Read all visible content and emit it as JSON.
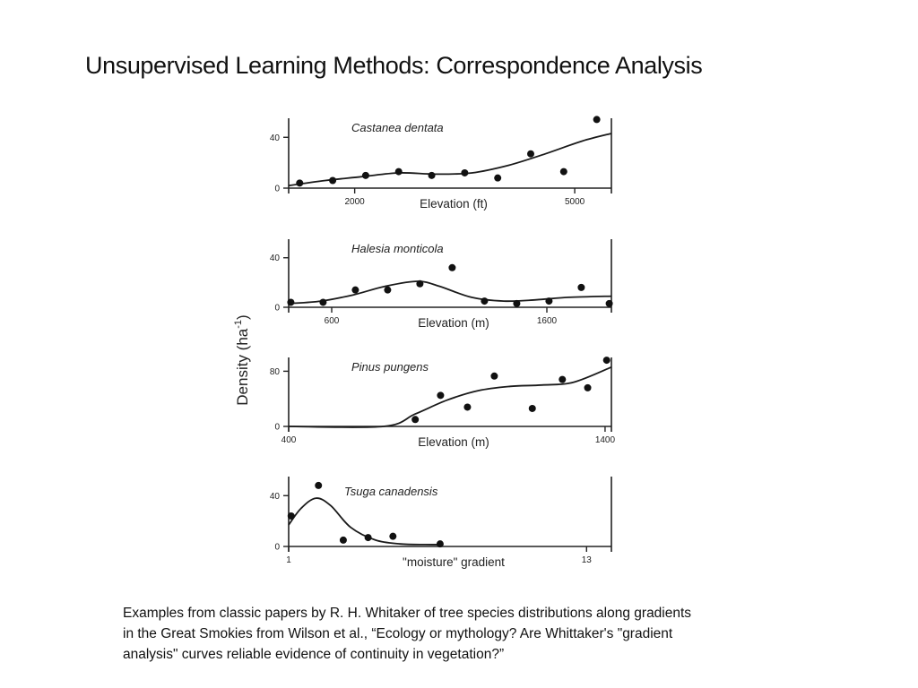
{
  "slide": {
    "title": "Unsupervised Learning Methods: Correspondence Analysis",
    "caption_lines": [
      "Examples from classic papers by R. H. Whitaker of tree species distributions along gradients",
      "in the Great  Smokies  from Wilson et al., “Ecology or mythology? Are Whittaker's \"gradient",
      "analysis\" curves reliable evidence of continuity in vegetation?”"
    ]
  },
  "figure": {
    "shared_ylabel": "Density (ha",
    "shared_ylabel_sup": "-1",
    "shared_ylabel_close": ")"
  },
  "chart_data": [
    {
      "type": "scatter",
      "title": "Castanea dentata",
      "xlabel": "Elevation (ft)",
      "ylabel": "Density (ha-1)",
      "xlim": [
        1100,
        5500
      ],
      "ylim": [
        0,
        55
      ],
      "xticks": [
        {
          "value": 2000,
          "label": "2000"
        },
        {
          "value": 5000,
          "label": "5000"
        }
      ],
      "yticks": [
        {
          "value": 0,
          "label": "0"
        },
        {
          "value": 40,
          "label": "40"
        }
      ],
      "points": [
        {
          "x": 1250,
          "y": 4
        },
        {
          "x": 1700,
          "y": 6
        },
        {
          "x": 2150,
          "y": 10
        },
        {
          "x": 2600,
          "y": 13
        },
        {
          "x": 3050,
          "y": 10
        },
        {
          "x": 3500,
          "y": 12
        },
        {
          "x": 3950,
          "y": 8
        },
        {
          "x": 4400,
          "y": 27
        },
        {
          "x": 4850,
          "y": 13
        },
        {
          "x": 5300,
          "y": 54
        }
      ],
      "curve": [
        {
          "x": 1100,
          "y": 2
        },
        {
          "x": 1600,
          "y": 6
        },
        {
          "x": 2100,
          "y": 9
        },
        {
          "x": 2600,
          "y": 12
        },
        {
          "x": 3100,
          "y": 11
        },
        {
          "x": 3600,
          "y": 12
        },
        {
          "x": 4100,
          "y": 18
        },
        {
          "x": 4600,
          "y": 27
        },
        {
          "x": 5100,
          "y": 37
        },
        {
          "x": 5500,
          "y": 43
        }
      ]
    },
    {
      "type": "scatter",
      "title": "Halesia monticola",
      "xlabel": "Elevation (m)",
      "ylabel": "Density (ha-1)",
      "xlim": [
        400,
        1900
      ],
      "ylim": [
        0,
        55
      ],
      "xticks": [
        {
          "value": 600,
          "label": "600"
        },
        {
          "value": 1600,
          "label": "1600"
        }
      ],
      "yticks": [
        {
          "value": 0,
          "label": "0"
        },
        {
          "value": 40,
          "label": "40"
        }
      ],
      "points": [
        {
          "x": 410,
          "y": 4
        },
        {
          "x": 560,
          "y": 4
        },
        {
          "x": 710,
          "y": 14
        },
        {
          "x": 860,
          "y": 14
        },
        {
          "x": 1010,
          "y": 19
        },
        {
          "x": 1160,
          "y": 32
        },
        {
          "x": 1310,
          "y": 5
        },
        {
          "x": 1460,
          "y": 3
        },
        {
          "x": 1610,
          "y": 5
        },
        {
          "x": 1760,
          "y": 16
        },
        {
          "x": 1890,
          "y": 3
        }
      ],
      "curve": [
        {
          "x": 400,
          "y": 3
        },
        {
          "x": 550,
          "y": 5
        },
        {
          "x": 700,
          "y": 10
        },
        {
          "x": 850,
          "y": 17
        },
        {
          "x": 1000,
          "y": 21
        },
        {
          "x": 1100,
          "y": 17
        },
        {
          "x": 1250,
          "y": 8
        },
        {
          "x": 1400,
          "y": 5
        },
        {
          "x": 1550,
          "y": 6
        },
        {
          "x": 1700,
          "y": 8
        },
        {
          "x": 1900,
          "y": 9
        }
      ]
    },
    {
      "type": "scatter",
      "title": "Pinus pungens",
      "xlabel": "Elevation (m)",
      "ylabel": "Density (ha-1)",
      "xlim": [
        400,
        1420
      ],
      "ylim": [
        0,
        100
      ],
      "xticks": [
        {
          "value": 400,
          "label": "400"
        },
        {
          "value": 1400,
          "label": "1400"
        }
      ],
      "yticks": [
        {
          "value": 0,
          "label": "0"
        },
        {
          "value": 80,
          "label": "80"
        }
      ],
      "points": [
        {
          "x": 800,
          "y": 10
        },
        {
          "x": 880,
          "y": 45
        },
        {
          "x": 965,
          "y": 28
        },
        {
          "x": 1050,
          "y": 73
        },
        {
          "x": 1170,
          "y": 26
        },
        {
          "x": 1265,
          "y": 68
        },
        {
          "x": 1345,
          "y": 56
        },
        {
          "x": 1405,
          "y": 96
        }
      ],
      "curve": [
        {
          "x": 400,
          "y": 0
        },
        {
          "x": 700,
          "y": 0
        },
        {
          "x": 800,
          "y": 18
        },
        {
          "x": 900,
          "y": 38
        },
        {
          "x": 1000,
          "y": 52
        },
        {
          "x": 1100,
          "y": 58
        },
        {
          "x": 1200,
          "y": 60
        },
        {
          "x": 1300,
          "y": 64
        },
        {
          "x": 1420,
          "y": 86
        }
      ]
    },
    {
      "type": "scatter",
      "title": "Tsuga canadensis",
      "xlabel": "\"moisture\" gradient",
      "ylabel": "Density (ha-1)",
      "xlim": [
        1,
        14
      ],
      "ylim": [
        0,
        55
      ],
      "xticks": [
        {
          "value": 1,
          "label": "1"
        },
        {
          "value": 13,
          "label": "13"
        }
      ],
      "yticks": [
        {
          "value": 0,
          "label": "0"
        },
        {
          "value": 40,
          "label": "40"
        }
      ],
      "points": [
        {
          "x": 1.1,
          "y": 24
        },
        {
          "x": 2.2,
          "y": 48
        },
        {
          "x": 3.2,
          "y": 5
        },
        {
          "x": 4.2,
          "y": 7
        },
        {
          "x": 5.2,
          "y": 8
        },
        {
          "x": 7.1,
          "y": 2
        }
      ],
      "curve": [
        {
          "x": 1,
          "y": 17
        },
        {
          "x": 1.5,
          "y": 30
        },
        {
          "x": 2.1,
          "y": 38
        },
        {
          "x": 2.7,
          "y": 32
        },
        {
          "x": 3.5,
          "y": 15
        },
        {
          "x": 4.5,
          "y": 5
        },
        {
          "x": 5.5,
          "y": 2
        },
        {
          "x": 6.5,
          "y": 1.5
        },
        {
          "x": 7.2,
          "y": 1.5
        }
      ]
    }
  ]
}
